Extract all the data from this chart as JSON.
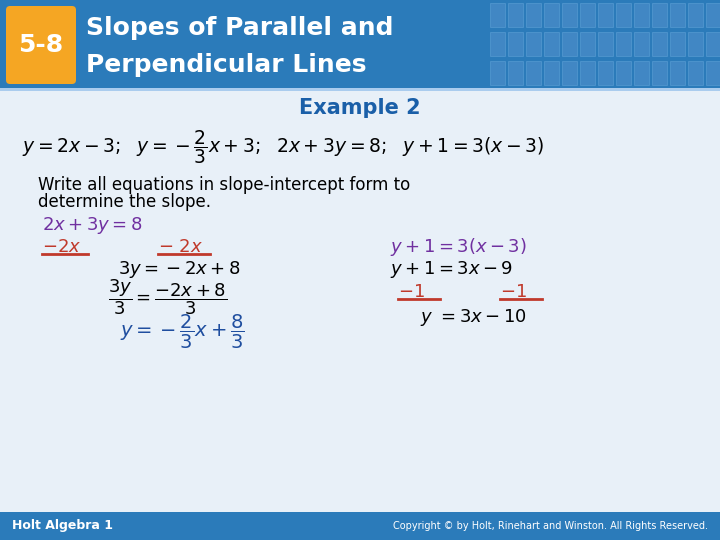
{
  "header_bg_color": "#2b7bba",
  "header_text_color": "#ffffff",
  "badge_color": "#f5a623",
  "badge_text": "5-8",
  "badge_text_color": "#ffffff",
  "example_label": "Example 2",
  "example_label_color": "#1a5fa8",
  "body_bg_color": "#f0f4f8",
  "footer_bg_color": "#2b7bba",
  "footer_left": "Holt Algebra 1",
  "footer_right": "Copyright © by Holt, Rinehart and Winston. All Rights Reserved.",
  "footer_text_color": "#ffffff",
  "main_eq_color": "#000000",
  "purple_color": "#7030a0",
  "red_color": "#c0392b",
  "blue_color": "#1f4e9f",
  "grid_color": "#5090cc"
}
